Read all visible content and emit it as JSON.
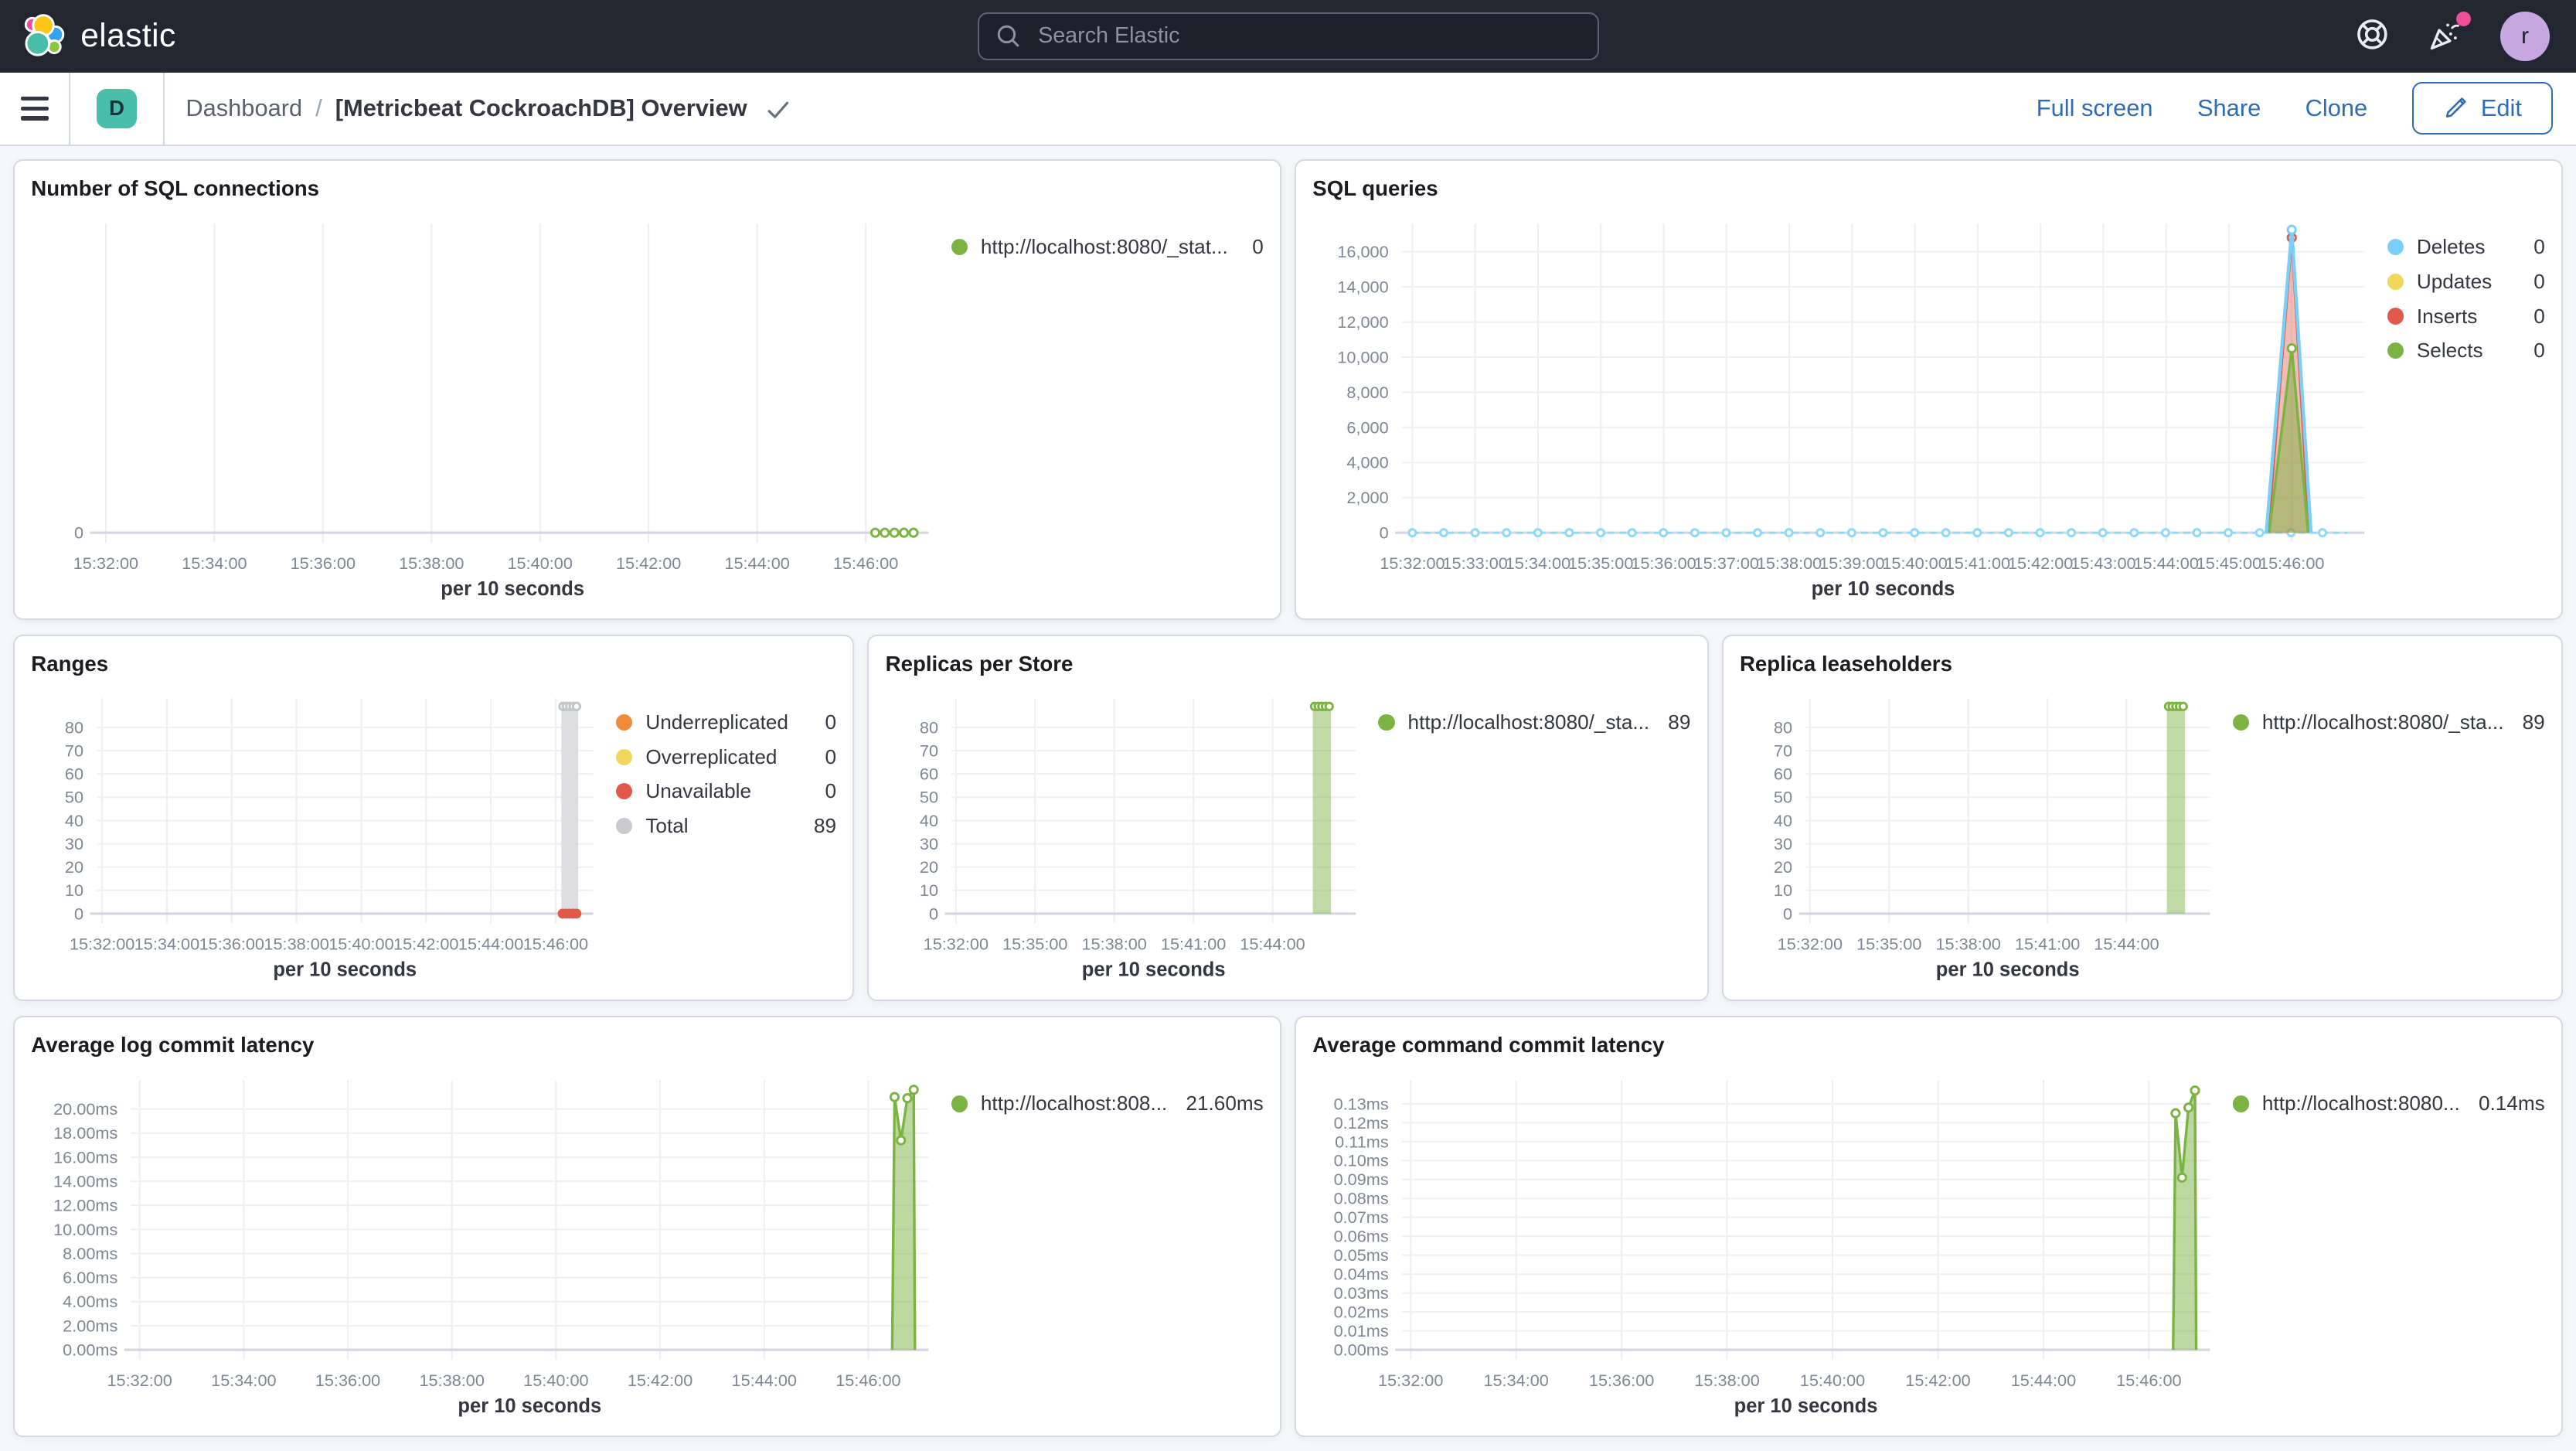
{
  "header": {
    "logo_text": "elastic",
    "search_placeholder": "Search Elastic",
    "avatar_initial": "r",
    "icons": [
      "help-icon",
      "news-icon"
    ],
    "notification_color": "#F04E98"
  },
  "toolbar": {
    "badge": "D",
    "breadcrumb_root": "Dashboard",
    "breadcrumb_sep": "/",
    "title": "[Metricbeat CockroachDB] Overview",
    "actions": {
      "full_screen": "Full screen",
      "share": "Share",
      "clone": "Clone",
      "edit": "Edit"
    }
  },
  "colors": {
    "green": "#7CB443",
    "blue": "#79CFF7",
    "yellow": "#F1D75C",
    "red": "#E2594C",
    "orange": "#EE8A38",
    "gray": "#C9CBCF",
    "link": "#2E6CB5",
    "header_bg": "#212630"
  },
  "panels": [
    {
      "title": "Number of SQL connections",
      "legend": {
        "items": [
          {
            "label": "http://localhost:8080/_stat...",
            "value": "0",
            "color": "#7CB443"
          }
        ]
      }
    },
    {
      "title": "SQL queries",
      "legend": {
        "items": [
          {
            "label": "Deletes",
            "value": "0",
            "color": "#79CFF7"
          },
          {
            "label": "Updates",
            "value": "0",
            "color": "#F1D75C"
          },
          {
            "label": "Inserts",
            "value": "0",
            "color": "#E2594C"
          },
          {
            "label": "Selects",
            "value": "0",
            "color": "#7CB443"
          }
        ]
      }
    },
    {
      "title": "Ranges",
      "legend": {
        "items": [
          {
            "label": "Underreplicated",
            "value": "0",
            "color": "#EE8A38"
          },
          {
            "label": "Overreplicated",
            "value": "0",
            "color": "#F1D75C"
          },
          {
            "label": "Unavailable",
            "value": "0",
            "color": "#E2594C"
          },
          {
            "label": "Total",
            "value": "89",
            "color": "#C9CBCF"
          }
        ]
      }
    },
    {
      "title": "Replicas per Store",
      "legend": {
        "items": [
          {
            "label": "http://localhost:8080/_sta...",
            "value": "89",
            "color": "#7CB443"
          }
        ]
      }
    },
    {
      "title": "Replica leaseholders",
      "legend": {
        "items": [
          {
            "label": "http://localhost:8080/_sta...",
            "value": "89",
            "color": "#7CB443"
          }
        ]
      }
    },
    {
      "title": "Average log commit latency",
      "legend": {
        "items": [
          {
            "label": "http://localhost:808...",
            "value": "21.60ms",
            "color": "#7CB443"
          }
        ]
      }
    },
    {
      "title": "Average command commit latency",
      "legend": {
        "items": [
          {
            "label": "http://localhost:8080...",
            "value": "0.14ms",
            "color": "#7CB443"
          }
        ]
      }
    }
  ],
  "chart_data": [
    {
      "type": "line",
      "title": "Number of SQL connections",
      "xlabel": "per 10 seconds",
      "ylim": [
        0,
        1.6
      ],
      "yticks": [
        {
          "v": 0,
          "label": "0"
        }
      ],
      "xticks": [
        {
          "f": 0.011,
          "label": "15:32:00"
        },
        {
          "f": 0.1415,
          "label": "15:34:00"
        },
        {
          "f": 0.272,
          "label": "15:36:00"
        },
        {
          "f": 0.4025,
          "label": "15:38:00"
        },
        {
          "f": 0.533,
          "label": "15:40:00"
        },
        {
          "f": 0.6635,
          "label": "15:42:00"
        },
        {
          "f": 0.794,
          "label": "15:44:00"
        },
        {
          "f": 0.9245,
          "label": "15:46:00"
        }
      ],
      "series": [
        {
          "name": "http://localhost:8080/_stat...",
          "kind": "line",
          "color": "#7CB443",
          "dotted": true,
          "marker": true,
          "points": [
            [
              0.936,
              0
            ],
            [
              0.9475,
              0
            ],
            [
              0.959,
              0
            ],
            [
              0.9705,
              0
            ],
            [
              0.982,
              0
            ]
          ]
        }
      ]
    },
    {
      "type": "area",
      "title": "SQL queries",
      "xlabel": "per 10 seconds",
      "ylim": [
        0,
        17600
      ],
      "yticks": [
        {
          "v": 0,
          "label": "0"
        },
        {
          "v": 2000,
          "label": "2,000"
        },
        {
          "v": 4000,
          "label": "4,000"
        },
        {
          "v": 6000,
          "label": "6,000"
        },
        {
          "v": 8000,
          "label": "8,000"
        },
        {
          "v": 10000,
          "label": "10,000"
        },
        {
          "v": 12000,
          "label": "12,000"
        },
        {
          "v": 14000,
          "label": "14,000"
        },
        {
          "v": 16000,
          "label": "16,000"
        }
      ],
      "xticks": [
        {
          "f": 0.011,
          "label": "15:32:00"
        },
        {
          "f": 0.07625,
          "label": "15:33:00"
        },
        {
          "f": 0.1415,
          "label": "15:34:00"
        },
        {
          "f": 0.20675,
          "label": "15:35:00"
        },
        {
          "f": 0.272,
          "label": "15:36:00"
        },
        {
          "f": 0.33725,
          "label": "15:37:00"
        },
        {
          "f": 0.4025,
          "label": "15:38:00"
        },
        {
          "f": 0.46775,
          "label": "15:39:00"
        },
        {
          "f": 0.533,
          "label": "15:40:00"
        },
        {
          "f": 0.59825,
          "label": "15:41:00"
        },
        {
          "f": 0.6635,
          "label": "15:42:00"
        },
        {
          "f": 0.72875,
          "label": "15:43:00"
        },
        {
          "f": 0.794,
          "label": "15:44:00"
        },
        {
          "f": 0.85925,
          "label": "15:45:00"
        },
        {
          "f": 0.9245,
          "label": "15:46:00"
        }
      ],
      "series": [
        {
          "name": "Deletes",
          "kind": "baseline",
          "color": "#8FD8F8",
          "y": 0,
          "x0": 0.011,
          "x1": 0.982,
          "step": 0.0326
        },
        {
          "name": "Inserts",
          "kind": "area",
          "color": "#E2594C",
          "fillOpacity": 0.4,
          "markerAt": [
            1
          ],
          "points": [
            [
              0.9,
              0
            ],
            [
              0.9245,
              16800
            ],
            [
              0.9425,
              0
            ]
          ]
        },
        {
          "name": "Selects",
          "kind": "area",
          "color": "#7CB443",
          "fillOpacity": 0.5,
          "markerAt": [
            1
          ],
          "points": [
            [
              0.901,
              0
            ],
            [
              0.9245,
              10500
            ],
            [
              0.9415,
              0
            ]
          ]
        },
        {
          "name": "Deletes",
          "kind": "line",
          "color": "#79CFF7",
          "width": 2,
          "markerAt": [
            1
          ],
          "points": [
            [
              0.898,
              0
            ],
            [
              0.9245,
              17250
            ],
            [
              0.9445,
              0
            ]
          ]
        }
      ]
    },
    {
      "type": "bar",
      "title": "Ranges",
      "xlabel": "per 10 seconds",
      "ylim": [
        0,
        92.5
      ],
      "yticks": [
        {
          "v": 0,
          "label": "0"
        },
        {
          "v": 10,
          "label": "10"
        },
        {
          "v": 20,
          "label": "20"
        },
        {
          "v": 30,
          "label": "30"
        },
        {
          "v": 40,
          "label": "40"
        },
        {
          "v": 50,
          "label": "50"
        },
        {
          "v": 60,
          "label": "60"
        },
        {
          "v": 70,
          "label": "70"
        },
        {
          "v": 80,
          "label": "80"
        }
      ],
      "xticks": [
        {
          "f": 0.011,
          "label": "15:32:00"
        },
        {
          "f": 0.1415,
          "label": "15:34:00"
        },
        {
          "f": 0.272,
          "label": "15:36:00"
        },
        {
          "f": 0.4025,
          "label": "15:38:00"
        },
        {
          "f": 0.533,
          "label": "15:40:00"
        },
        {
          "f": 0.6635,
          "label": "15:42:00"
        },
        {
          "f": 0.794,
          "label": "15:44:00"
        },
        {
          "f": 0.9245,
          "label": "15:46:00"
        }
      ],
      "series": [
        {
          "name": "Total",
          "kind": "bar",
          "color": "#DCDEE1",
          "x": 0.953,
          "w": 0.034,
          "v": 89,
          "topMarkers": 5,
          "markerColor": "#C2C5CA"
        },
        {
          "name": "Unavailable",
          "kind": "dots",
          "color": "#E2594C",
          "y": 0,
          "r": 3,
          "xs": [
            0.9385,
            0.9455,
            0.9525,
            0.9595,
            0.9665
          ]
        }
      ]
    },
    {
      "type": "bar",
      "title": "Replicas per Store",
      "xlabel": "per 10 seconds",
      "ylim": [
        0,
        92.5
      ],
      "yticks": [
        {
          "v": 0,
          "label": "0"
        },
        {
          "v": 10,
          "label": "10"
        },
        {
          "v": 20,
          "label": "20"
        },
        {
          "v": 30,
          "label": "30"
        },
        {
          "v": 40,
          "label": "40"
        },
        {
          "v": 50,
          "label": "50"
        },
        {
          "v": 60,
          "label": "60"
        },
        {
          "v": 70,
          "label": "70"
        },
        {
          "v": 80,
          "label": "80"
        }
      ],
      "xticks": [
        {
          "f": 0.011,
          "label": "15:32:00"
        },
        {
          "f": 0.2068,
          "label": "15:35:00"
        },
        {
          "f": 0.4025,
          "label": "15:38:00"
        },
        {
          "f": 0.5983,
          "label": "15:41:00"
        },
        {
          "f": 0.794,
          "label": "15:44:00"
        }
      ],
      "series": [
        {
          "name": "http://localhost:8080/_sta...",
          "kind": "bar",
          "color": "#7CB443",
          "fillOpacity": 0.48,
          "x": 0.916,
          "w": 0.045,
          "v": 89,
          "topMarkers": 5,
          "markerColor": "#7CB443"
        }
      ]
    },
    {
      "type": "bar",
      "title": "Replica leaseholders",
      "xlabel": "per 10 seconds",
      "ylim": [
        0,
        92.5
      ],
      "yticks": [
        {
          "v": 0,
          "label": "0"
        },
        {
          "v": 10,
          "label": "10"
        },
        {
          "v": 20,
          "label": "20"
        },
        {
          "v": 30,
          "label": "30"
        },
        {
          "v": 40,
          "label": "40"
        },
        {
          "v": 50,
          "label": "50"
        },
        {
          "v": 60,
          "label": "60"
        },
        {
          "v": 70,
          "label": "70"
        },
        {
          "v": 80,
          "label": "80"
        }
      ],
      "xticks": [
        {
          "f": 0.011,
          "label": "15:32:00"
        },
        {
          "f": 0.2068,
          "label": "15:35:00"
        },
        {
          "f": 0.4025,
          "label": "15:38:00"
        },
        {
          "f": 0.5983,
          "label": "15:41:00"
        },
        {
          "f": 0.794,
          "label": "15:44:00"
        }
      ],
      "series": [
        {
          "name": "http://localhost:8080/_sta...",
          "kind": "bar",
          "color": "#7CB443",
          "fillOpacity": 0.48,
          "x": 0.916,
          "w": 0.045,
          "v": 89,
          "topMarkers": 5,
          "markerColor": "#7CB443"
        }
      ]
    },
    {
      "type": "area",
      "title": "Average log commit latency",
      "xlabel": "per 10 seconds",
      "ylim": [
        0,
        22.4
      ],
      "yticks": [
        {
          "v": 0,
          "label": "0.00ms"
        },
        {
          "v": 2,
          "label": "2.00ms"
        },
        {
          "v": 4,
          "label": "4.00ms"
        },
        {
          "v": 6,
          "label": "6.00ms"
        },
        {
          "v": 8,
          "label": "8.00ms"
        },
        {
          "v": 10,
          "label": "10.00ms"
        },
        {
          "v": 12,
          "label": "12.00ms"
        },
        {
          "v": 14,
          "label": "14.00ms"
        },
        {
          "v": 16,
          "label": "16.00ms"
        },
        {
          "v": 18,
          "label": "18.00ms"
        },
        {
          "v": 20,
          "label": "20.00ms"
        }
      ],
      "xticks": [
        {
          "f": 0.011,
          "label": "15:32:00"
        },
        {
          "f": 0.1415,
          "label": "15:34:00"
        },
        {
          "f": 0.272,
          "label": "15:36:00"
        },
        {
          "f": 0.4025,
          "label": "15:38:00"
        },
        {
          "f": 0.533,
          "label": "15:40:00"
        },
        {
          "f": 0.6635,
          "label": "15:42:00"
        },
        {
          "f": 0.794,
          "label": "15:44:00"
        },
        {
          "f": 0.9245,
          "label": "15:46:00"
        }
      ],
      "series": [
        {
          "name": "http://localhost:808...",
          "kind": "area",
          "color": "#7CB443",
          "fillOpacity": 0.5,
          "markerAt": [
            1,
            2,
            3,
            4
          ],
          "points": [
            [
              0.9545,
              0
            ],
            [
              0.9575,
              21.0
            ],
            [
              0.9655,
              17.4
            ],
            [
              0.9735,
              20.9
            ],
            [
              0.9815,
              21.6
            ],
            [
              0.983,
              0
            ]
          ]
        }
      ]
    },
    {
      "type": "area",
      "title": "Average command commit latency",
      "xlabel": "per 10 seconds",
      "ylim": [
        0,
        0.1425
      ],
      "yticks": [
        {
          "v": 0,
          "label": "0.00ms"
        },
        {
          "v": 0.01,
          "label": "0.01ms"
        },
        {
          "v": 0.02,
          "label": "0.02ms"
        },
        {
          "v": 0.03,
          "label": "0.03ms"
        },
        {
          "v": 0.04,
          "label": "0.04ms"
        },
        {
          "v": 0.05,
          "label": "0.05ms"
        },
        {
          "v": 0.06,
          "label": "0.06ms"
        },
        {
          "v": 0.07,
          "label": "0.07ms"
        },
        {
          "v": 0.08,
          "label": "0.08ms"
        },
        {
          "v": 0.09,
          "label": "0.09ms"
        },
        {
          "v": 0.1,
          "label": "0.10ms"
        },
        {
          "v": 0.11,
          "label": "0.11ms"
        },
        {
          "v": 0.12,
          "label": "0.12ms"
        },
        {
          "v": 0.13,
          "label": "0.13ms"
        }
      ],
      "xticks": [
        {
          "f": 0.011,
          "label": "15:32:00"
        },
        {
          "f": 0.1415,
          "label": "15:34:00"
        },
        {
          "f": 0.272,
          "label": "15:36:00"
        },
        {
          "f": 0.4025,
          "label": "15:38:00"
        },
        {
          "f": 0.533,
          "label": "15:40:00"
        },
        {
          "f": 0.6635,
          "label": "15:42:00"
        },
        {
          "f": 0.794,
          "label": "15:44:00"
        },
        {
          "f": 0.9245,
          "label": "15:46:00"
        }
      ],
      "series": [
        {
          "name": "http://localhost:8080...",
          "kind": "area",
          "color": "#7CB443",
          "fillOpacity": 0.5,
          "markerAt": [
            1,
            2,
            3,
            4
          ],
          "points": [
            [
              0.9545,
              0
            ],
            [
              0.9575,
              0.125
            ],
            [
              0.9655,
              0.091
            ],
            [
              0.9735,
              0.128
            ],
            [
              0.9815,
              0.137
            ],
            [
              0.983,
              0
            ]
          ]
        }
      ]
    }
  ]
}
